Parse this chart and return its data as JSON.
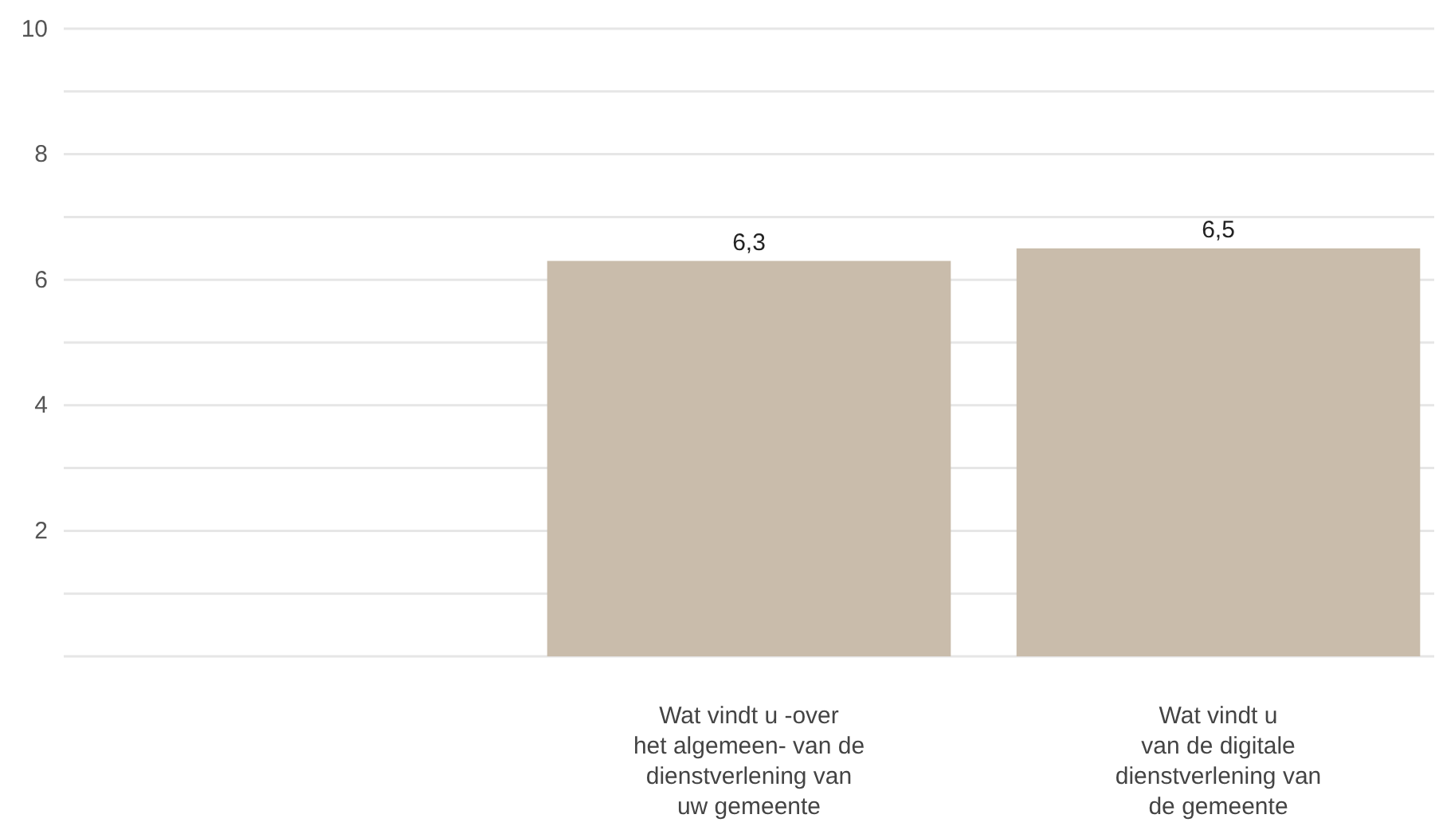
{
  "chart_data": {
    "type": "bar",
    "categories": [
      null,
      "Wat vindt u -over\nhet algemeen- van de\ndienstverlening van\nuw gemeente",
      "Wat vindt u\nvan de digitale\ndienstverlening van\nde gemeente"
    ],
    "values": [
      null,
      6.3,
      6.5
    ],
    "value_labels": [
      null,
      "6,3",
      "6,5"
    ],
    "color": "#c9bcab",
    "ylim": [
      0,
      10
    ],
    "yticks": [
      {
        "value": 0,
        "label": null
      },
      {
        "value": 1,
        "label": null
      },
      2,
      {
        "value": 3,
        "label": null
      },
      4,
      {
        "value": 5,
        "label": null
      },
      6,
      {
        "value": 7,
        "label": null
      },
      8,
      {
        "value": 9,
        "label": null
      },
      10
    ],
    "grid": "y"
  }
}
